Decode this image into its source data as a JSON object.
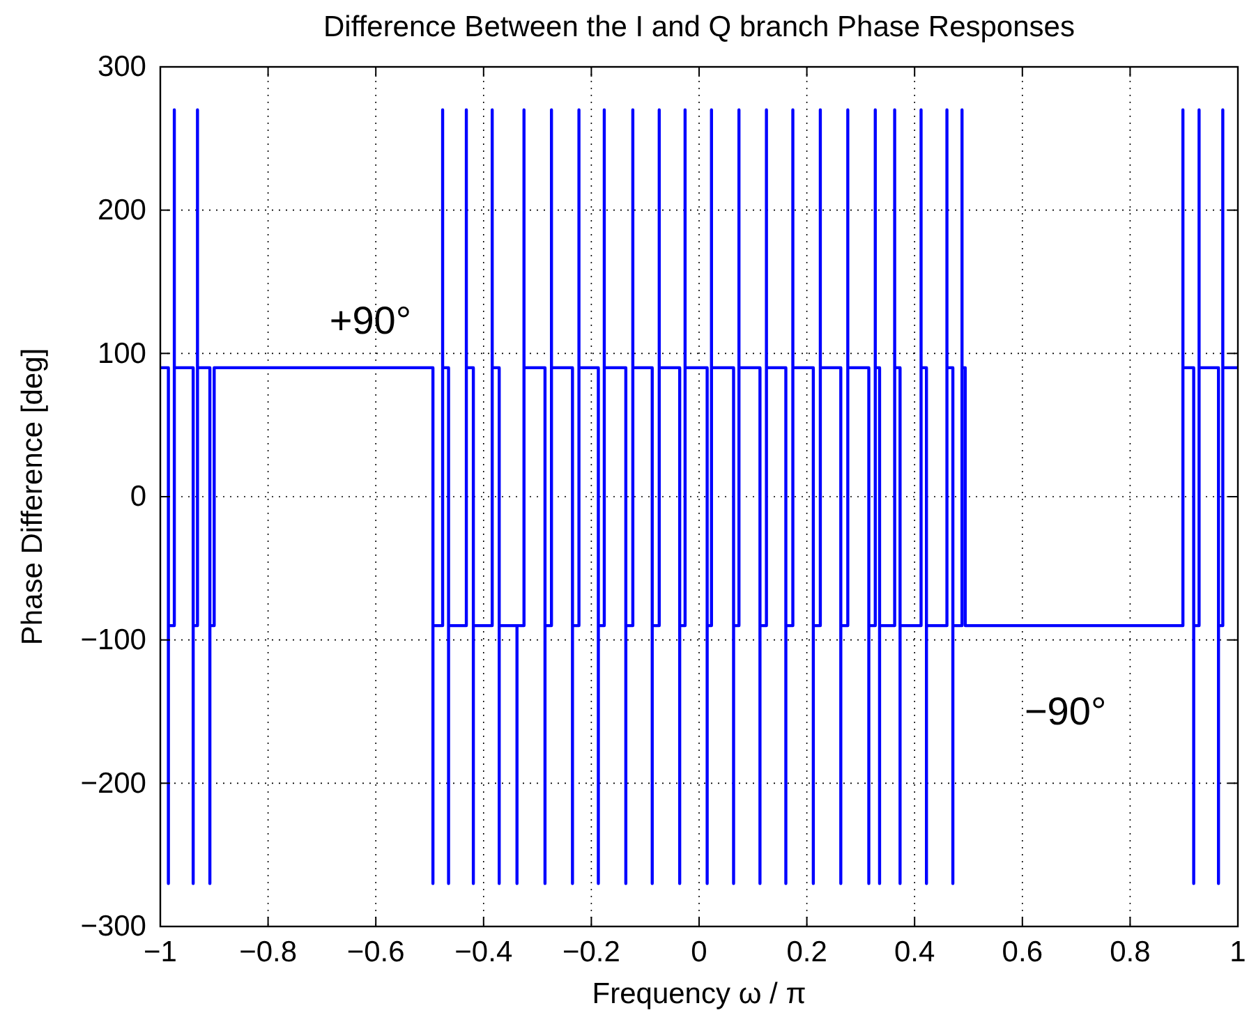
{
  "chart_data": {
    "type": "step",
    "title": "Difference Between the I and Q branch Phase Responses",
    "xlabel": "Frequency ω / π",
    "ylabel": "Phase Difference [deg]",
    "xlim": [
      -1,
      1
    ],
    "ylim": [
      -300,
      300
    ],
    "xticks": [
      {
        "value": -1,
        "label": "−1"
      },
      {
        "value": -0.8,
        "label": "−0.8"
      },
      {
        "value": -0.6,
        "label": "−0.6"
      },
      {
        "value": -0.4,
        "label": "−0.4"
      },
      {
        "value": -0.2,
        "label": "−0.2"
      },
      0,
      0.2,
      0.4,
      0.6,
      0.8,
      1
    ],
    "yticks": [
      {
        "value": -300,
        "label": "−300"
      },
      {
        "value": -200,
        "label": "−200"
      },
      {
        "value": -100,
        "label": "−100"
      },
      0,
      100,
      200,
      300
    ],
    "grid": true,
    "line_style": "solid",
    "marker": "none",
    "annotations": [
      "+90°",
      "−90°"
    ],
    "series": [
      {
        "color": "#0000ff",
        "x": [
          -1,
          -0.985,
          -0.985,
          -0.985,
          -0.974,
          -0.974,
          -0.974,
          -0.939,
          -0.939,
          -0.939,
          -0.931,
          -0.931,
          -0.931,
          -0.908,
          -0.908,
          -0.908,
          -0.9,
          -0.494,
          -0.494,
          -0.494,
          -0.476,
          -0.476,
          -0.476,
          -0.465,
          -0.465,
          -0.465,
          -0.432,
          -0.432,
          -0.432,
          -0.419,
          -0.419,
          -0.419,
          -0.384,
          -0.384,
          -0.384,
          -0.371,
          -0.371,
          -0.371,
          -0.338,
          -0.338,
          -0.338,
          -0.325,
          -0.325,
          -0.325,
          -0.286,
          -0.286,
          -0.286,
          -0.274,
          -0.274,
          -0.274,
          -0.235,
          -0.235,
          -0.235,
          -0.223,
          -0.223,
          -0.223,
          -0.187,
          -0.187,
          -0.187,
          -0.176,
          -0.176,
          -0.176,
          -0.136,
          -0.136,
          -0.136,
          -0.123,
          -0.123,
          -0.123,
          -0.087,
          -0.087,
          -0.087,
          -0.074,
          -0.074,
          -0.074,
          -0.036,
          -0.036,
          -0.036,
          -0.026,
          -0.026,
          -0.026,
          0.015,
          0.015,
          0.015,
          0.023,
          0.023,
          0.023,
          0.064,
          0.064,
          0.064,
          0.074,
          0.074,
          0.074,
          0.113,
          0.113,
          0.113,
          0.125,
          0.125,
          0.125,
          0.161,
          0.161,
          0.161,
          0.174,
          0.174,
          0.174,
          0.212,
          0.212,
          0.212,
          0.225,
          0.225,
          0.225,
          0.263,
          0.263,
          0.263,
          0.276,
          0.276,
          0.276,
          0.315,
          0.315,
          0.315,
          0.327,
          0.327,
          0.327,
          0.335,
          0.335,
          0.335,
          0.363,
          0.363,
          0.363,
          0.373,
          0.373,
          0.373,
          0.412,
          0.412,
          0.412,
          0.422,
          0.422,
          0.422,
          0.46,
          0.46,
          0.46,
          0.471,
          0.471,
          0.471,
          0.488,
          0.488,
          0.488,
          0.494,
          0.898,
          0.898,
          0.898,
          0.918,
          0.918,
          0.918,
          0.928,
          0.928,
          0.928,
          0.964,
          0.964,
          0.964,
          0.972,
          0.972,
          0.972,
          1
        ],
        "values": [
          90,
          -90,
          -270,
          -90,
          90,
          270,
          90,
          -90,
          -270,
          -90,
          90,
          270,
          90,
          -90,
          -270,
          -90,
          90,
          -90,
          -270,
          -90,
          90,
          270,
          90,
          -90,
          -270,
          -90,
          90,
          270,
          90,
          -90,
          -270,
          -90,
          90,
          270,
          90,
          -90,
          -270,
          -90,
          -90,
          -270,
          -90,
          90,
          270,
          90,
          -90,
          -270,
          -90,
          90,
          270,
          90,
          -90,
          -270,
          -90,
          90,
          270,
          90,
          -90,
          -270,
          -90,
          90,
          270,
          90,
          -90,
          -270,
          -90,
          90,
          270,
          90,
          -90,
          -270,
          -90,
          90,
          270,
          90,
          -90,
          -270,
          -90,
          90,
          270,
          90,
          -90,
          -270,
          -90,
          90,
          270,
          90,
          -90,
          -270,
          -90,
          90,
          270,
          90,
          -90,
          -270,
          -90,
          90,
          270,
          90,
          -90,
          -270,
          -90,
          90,
          270,
          90,
          -90,
          -270,
          -90,
          90,
          270,
          90,
          -90,
          -270,
          -90,
          90,
          270,
          90,
          -90,
          -270,
          -90,
          90,
          270,
          90,
          -90,
          -270,
          -90,
          90,
          270,
          90,
          -90,
          -270,
          -90,
          90,
          270,
          90,
          -90,
          -270,
          -90,
          90,
          270,
          90,
          -90,
          -270,
          -90,
          90,
          270,
          90,
          -90,
          90,
          270,
          90,
          -90,
          -270,
          -90,
          90,
          270,
          90,
          -90,
          -270,
          -90,
          90,
          270,
          90,
          90
        ]
      }
    ]
  }
}
